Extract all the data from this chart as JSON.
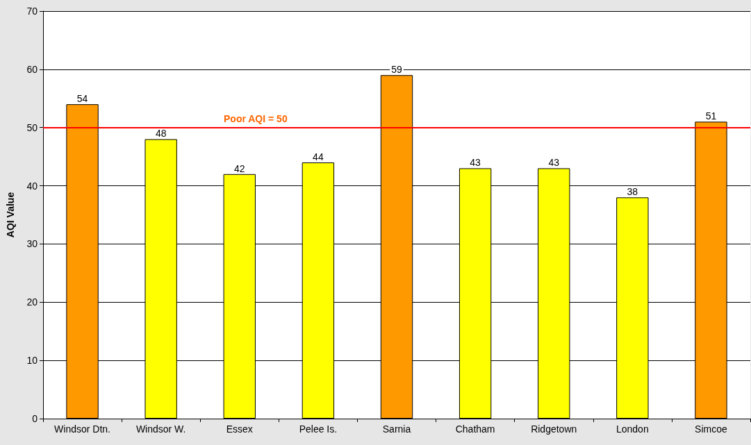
{
  "chart_data": {
    "type": "bar",
    "ylabel": "AQI Value",
    "categories": [
      "Windsor Dtn.",
      "Windsor W.",
      "Essex",
      "Pelee Is.",
      "Sarnia",
      "Chatham",
      "Ridgetown",
      "London",
      "Simcoe"
    ],
    "values": [
      54,
      48,
      42,
      44,
      59,
      43,
      43,
      38,
      51
    ],
    "colors": [
      "#ff9900",
      "#ffff00",
      "#ffff00",
      "#ffff00",
      "#ff9900",
      "#ffff00",
      "#ffff00",
      "#ffff00",
      "#ff9900"
    ],
    "ylim": [
      0,
      70
    ],
    "yticks": [
      0,
      10,
      20,
      30,
      40,
      50,
      60,
      70
    ],
    "grid": "y",
    "data_labels": true,
    "ref_lines": [
      {
        "axis": "y",
        "value": 50,
        "label": "Poor AQI = 50",
        "color": "#ff0000"
      }
    ]
  }
}
